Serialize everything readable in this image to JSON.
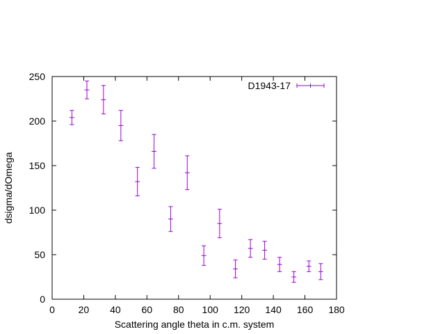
{
  "chart_data": {
    "type": "scatter",
    "xlabel": "Scattering angle theta in c.m. system",
    "ylabel": "dsigma/dOmega",
    "xlim": [
      0,
      180
    ],
    "ylim": [
      0,
      250
    ],
    "x_ticks": [
      0,
      20,
      40,
      60,
      80,
      100,
      120,
      140,
      160,
      180
    ],
    "y_ticks": [
      0,
      50,
      100,
      150,
      200,
      250
    ],
    "grid": false,
    "legend_position": "top-right",
    "series": [
      {
        "name": "D1943-17",
        "color": "#9400d3",
        "x": [
          12.5,
          22.0,
          32.5,
          43.5,
          54.0,
          64.5,
          75.0,
          85.5,
          96.0,
          106.0,
          116.0,
          125.5,
          134.5,
          144.0,
          153.0,
          162.5,
          170.0
        ],
        "y": [
          204,
          235,
          224,
          195,
          132,
          166,
          90,
          142,
          49,
          85,
          34,
          57,
          55,
          39,
          25,
          37,
          31
        ],
        "xerr": [
          1.5,
          1.5,
          1.5,
          1.5,
          1.5,
          1.5,
          1.5,
          1.5,
          1.5,
          1.5,
          1.5,
          1.5,
          1.5,
          1.5,
          1.5,
          1.5,
          1.5
        ],
        "yerr": [
          8,
          10,
          16,
          17,
          16,
          19,
          14,
          19,
          11,
          16,
          10,
          10,
          10,
          8,
          6,
          6,
          9
        ]
      }
    ]
  }
}
